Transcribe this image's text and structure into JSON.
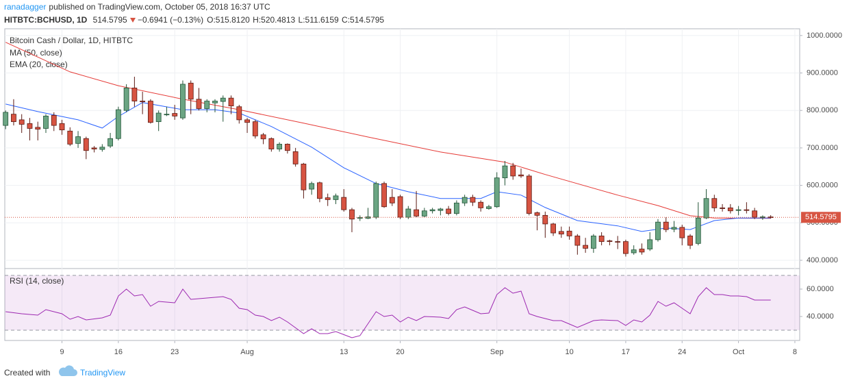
{
  "chart_data": {
    "type": "candlestick",
    "header": {
      "author": "ranadagger",
      "published": "published on TradingView.com, October 05, 2018 16:37 UTC",
      "symbol": "HITBTC:BCHUSD, 1D",
      "last": "514.5795",
      "change": "−0.6941 (−0.13%)",
      "ohlc": [
        "O:515.8120",
        "H:520.4813",
        "L:511.6159",
        "C:514.5795"
      ]
    },
    "title": "Bitcoin Cash / Dollar, 1D, HITBTC",
    "footer": {
      "created": "Created with",
      "brand": "TradingView"
    },
    "up_color": "#6ba583",
    "down_color": "#d75442",
    "candles": [
      [
        760,
        800,
        750,
        795
      ],
      [
        790,
        830,
        760,
        770
      ],
      [
        775,
        790,
        740,
        763
      ],
      [
        765,
        780,
        720,
        752
      ],
      [
        755,
        770,
        720,
        750
      ],
      [
        752,
        790,
        740,
        785
      ],
      [
        787,
        795,
        745,
        760
      ],
      [
        765,
        775,
        735,
        748
      ],
      [
        745,
        755,
        705,
        710
      ],
      [
        712,
        745,
        700,
        730
      ],
      [
        725,
        730,
        670,
        693
      ],
      [
        700,
        705,
        688,
        697
      ],
      [
        696,
        710,
        690,
        702
      ],
      [
        705,
        740,
        700,
        725
      ],
      [
        725,
        810,
        720,
        802
      ],
      [
        800,
        870,
        795,
        860
      ],
      [
        860,
        890,
        810,
        825
      ],
      [
        825,
        850,
        790,
        823
      ],
      [
        825,
        830,
        765,
        768
      ],
      [
        770,
        800,
        745,
        793
      ],
      [
        790,
        810,
        785,
        790
      ],
      [
        792,
        815,
        775,
        785
      ],
      [
        780,
        880,
        775,
        870
      ],
      [
        873,
        880,
        790,
        830
      ],
      [
        830,
        860,
        800,
        805
      ],
      [
        805,
        830,
        795,
        825
      ],
      [
        820,
        830,
        795,
        825
      ],
      [
        824,
        840,
        770,
        833
      ],
      [
        833,
        840,
        790,
        812
      ],
      [
        810,
        815,
        765,
        775
      ],
      [
        775,
        780,
        740,
        768
      ],
      [
        770,
        775,
        725,
        732
      ],
      [
        735,
        740,
        710,
        724
      ],
      [
        725,
        728,
        690,
        697
      ],
      [
        697,
        715,
        690,
        710
      ],
      [
        710,
        712,
        685,
        693
      ],
      [
        690,
        700,
        650,
        657
      ],
      [
        657,
        660,
        565,
        588
      ],
      [
        590,
        610,
        575,
        605
      ],
      [
        607,
        610,
        555,
        565
      ],
      [
        567,
        578,
        545,
        562
      ],
      [
        562,
        578,
        550,
        572
      ],
      [
        568,
        590,
        530,
        535
      ],
      [
        535,
        540,
        475,
        510
      ],
      [
        512,
        520,
        505,
        514
      ],
      [
        512,
        540,
        510,
        516
      ],
      [
        515,
        610,
        510,
        605
      ],
      [
        605,
        610,
        540,
        543
      ],
      [
        568,
        590,
        545,
        553
      ],
      [
        570,
        575,
        510,
        515
      ],
      [
        515,
        545,
        510,
        537
      ],
      [
        535,
        585,
        515,
        518
      ],
      [
        518,
        540,
        515,
        532
      ],
      [
        532,
        540,
        525,
        535
      ],
      [
        533,
        540,
        520,
        537
      ],
      [
        537,
        545,
        520,
        525
      ],
      [
        525,
        560,
        520,
        553
      ],
      [
        553,
        575,
        545,
        568
      ],
      [
        568,
        575,
        545,
        555
      ],
      [
        555,
        560,
        530,
        540
      ],
      [
        538,
        548,
        535,
        543
      ],
      [
        543,
        635,
        540,
        620
      ],
      [
        620,
        665,
        600,
        652
      ],
      [
        652,
        660,
        615,
        625
      ],
      [
        628,
        645,
        620,
        625
      ],
      [
        625,
        630,
        520,
        525
      ],
      [
        527,
        530,
        480,
        520
      ],
      [
        520,
        530,
        460,
        497
      ],
      [
        497,
        500,
        465,
        473
      ],
      [
        477,
        490,
        460,
        470
      ],
      [
        478,
        490,
        455,
        465
      ],
      [
        465,
        470,
        415,
        440
      ],
      [
        440,
        460,
        420,
        432
      ],
      [
        432,
        470,
        420,
        465
      ],
      [
        465,
        475,
        440,
        450
      ],
      [
        452,
        455,
        440,
        450
      ],
      [
        450,
        465,
        430,
        449
      ],
      [
        450,
        455,
        410,
        418
      ],
      [
        420,
        440,
        415,
        428
      ],
      [
        430,
        445,
        415,
        422
      ],
      [
        430,
        475,
        425,
        455
      ],
      [
        455,
        510,
        450,
        502
      ],
      [
        502,
        515,
        475,
        482
      ],
      [
        483,
        505,
        475,
        488
      ],
      [
        488,
        495,
        440,
        460
      ],
      [
        465,
        470,
        430,
        440
      ],
      [
        445,
        555,
        440,
        513
      ],
      [
        513,
        590,
        510,
        565
      ],
      [
        565,
        575,
        530,
        540
      ],
      [
        540,
        550,
        530,
        538
      ],
      [
        540,
        550,
        525,
        532
      ],
      [
        533,
        545,
        520,
        535
      ],
      [
        535,
        555,
        525,
        533
      ],
      [
        532,
        540,
        510,
        515
      ],
      [
        514,
        520,
        508,
        516
      ],
      [
        515.812,
        520.4813,
        511.6159,
        514.5795
      ]
    ],
    "series": [
      {
        "name": "MA (50, close)",
        "color": "#e53935",
        "x": [
          0,
          8,
          14,
          22,
          29,
          37,
          45,
          54,
          62,
          67,
          76,
          81,
          85,
          88,
          95
        ],
        "values": [
          982,
          903,
          866,
          830,
          802,
          766,
          729,
          689,
          662,
          629,
          574,
          546,
          519,
          513,
          512
        ]
      },
      {
        "name": "EMA (20, close)",
        "color": "#2962ff",
        "x": [
          0,
          4,
          9,
          12,
          14,
          17,
          22,
          26,
          29,
          33,
          38,
          42,
          46,
          50,
          54,
          59,
          61,
          64,
          67,
          71,
          76,
          79,
          82,
          85,
          88,
          91,
          95
        ],
        "values": [
          817,
          797,
          775,
          753,
          784,
          821,
          802,
          802,
          793,
          757,
          702,
          647,
          605,
          583,
          565,
          565,
          583,
          574,
          541,
          506,
          492,
          477,
          486,
          482,
          506,
          513,
          513
        ]
      }
    ],
    "xlim": [
      -0.1,
      98.6
    ],
    "xticks": [
      {
        "value": 7,
        "label": "9"
      },
      {
        "value": 14,
        "label": "16"
      },
      {
        "value": 21,
        "label": "23"
      },
      {
        "value": 30,
        "label": "Aug"
      },
      {
        "value": 42,
        "label": "13"
      },
      {
        "value": 49,
        "label": "20"
      },
      {
        "value": 61,
        "label": "Sep"
      },
      {
        "value": 70,
        "label": "10"
      },
      {
        "value": 77,
        "label": "17"
      },
      {
        "value": 84,
        "label": "24"
      },
      {
        "value": 91,
        "label": "Oct"
      },
      {
        "value": 98,
        "label": "8"
      }
    ],
    "ylim": [
      378,
      1018
    ],
    "yticks": [
      {
        "value": 400,
        "label": "400.0000"
      },
      {
        "value": 500,
        "label": "500.0000"
      },
      {
        "value": 600,
        "label": "600.0000"
      },
      {
        "value": 700,
        "label": "700.0000"
      },
      {
        "value": 800,
        "label": "800.0000"
      },
      {
        "value": 900,
        "label": "900.0000"
      },
      {
        "value": 1000,
        "label": "1000.0000"
      }
    ],
    "grid": true,
    "rsi": {
      "name": "RSI (14, close)",
      "color": "#9c27b0",
      "x": [
        0,
        2,
        4,
        5,
        7,
        8,
        9,
        10,
        12,
        13,
        14,
        15,
        16,
        17,
        18,
        19,
        21,
        22,
        23,
        25,
        27,
        28,
        29,
        30,
        31,
        32,
        33,
        34,
        35,
        37,
        38,
        39,
        40,
        41,
        43,
        44,
        46,
        47,
        48,
        49,
        50,
        51,
        52,
        54,
        55,
        56,
        57,
        58,
        59,
        60,
        61,
        62,
        63,
        64,
        65,
        66,
        68,
        69,
        70,
        71,
        73,
        74,
        76,
        77,
        78,
        79,
        80,
        81,
        82,
        83,
        84,
        85,
        86,
        87,
        88,
        89,
        90,
        91,
        92,
        93,
        95
      ],
      "values": [
        43.5,
        42,
        41,
        45,
        42,
        38,
        40,
        37.5,
        39,
        41,
        55,
        60,
        55,
        56,
        47.5,
        51,
        50,
        60,
        52.5,
        53.5,
        54.5,
        52.5,
        46,
        45,
        41,
        40,
        37,
        39.5,
        36,
        27.5,
        31,
        27.5,
        27.5,
        29,
        24.5,
        26,
        43.5,
        40,
        41,
        36,
        39.5,
        37,
        40,
        39.5,
        38.5,
        45,
        47,
        44.5,
        42,
        42.5,
        56,
        61,
        57,
        58.5,
        42,
        40,
        37,
        37,
        34.5,
        32,
        37,
        37.5,
        37,
        33.5,
        37.5,
        36,
        41,
        51,
        47.5,
        50,
        46,
        42,
        54.5,
        61,
        56,
        56,
        55,
        55,
        54.5,
        52,
        52
      ],
      "ylim": [
        22.5,
        75
      ],
      "band": [
        30,
        70
      ],
      "yticks": [
        {
          "value": 40,
          "label": "40.0000"
        },
        {
          "value": 60,
          "label": "60.0000"
        }
      ]
    }
  }
}
